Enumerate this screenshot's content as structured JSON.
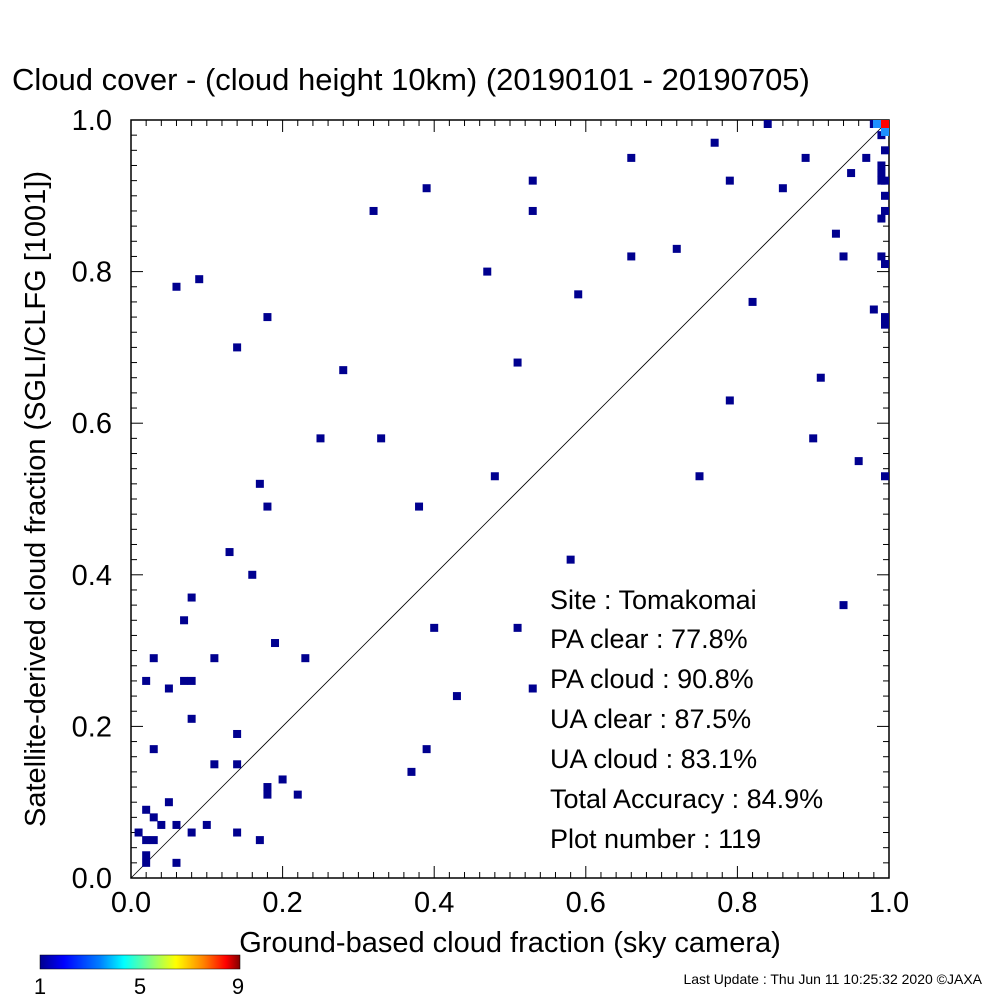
{
  "title": "Cloud cover - (cloud height 10km)  (20190101 - 20190705)",
  "chart_data": {
    "type": "scatter",
    "title": "Cloud cover - (cloud height 10km)  (20190101 - 20190705)",
    "xlabel": "Ground-based cloud fraction (sky camera)",
    "ylabel": "Satellite-derived cloud fraction (SGLI/CLFG [1001])",
    "xlim": [
      0,
      1
    ],
    "ylim": [
      0,
      1
    ],
    "xticks": [
      "0.0",
      "0.2",
      "0.4",
      "0.6",
      "0.8",
      "1.0"
    ],
    "yticks": [
      "0.0",
      "0.2",
      "0.4",
      "0.6",
      "0.8",
      "1.0"
    ],
    "diagonal_line": true,
    "grid": false,
    "points": [
      [
        0.01,
        0.06
      ],
      [
        0.02,
        0.02
      ],
      [
        0.02,
        0.03
      ],
      [
        0.02,
        0.05
      ],
      [
        0.02,
        0.09
      ],
      [
        0.02,
        0.26
      ],
      [
        0.03,
        0.05
      ],
      [
        0.03,
        0.08
      ],
      [
        0.03,
        0.29
      ],
      [
        0.03,
        0.17
      ],
      [
        0.04,
        0.07
      ],
      [
        0.05,
        0.1
      ],
      [
        0.05,
        0.25
      ],
      [
        0.06,
        0.07
      ],
      [
        0.06,
        0.02
      ],
      [
        0.06,
        0.78
      ],
      [
        0.07,
        0.26
      ],
      [
        0.07,
        0.34
      ],
      [
        0.08,
        0.37
      ],
      [
        0.08,
        0.26
      ],
      [
        0.08,
        0.21
      ],
      [
        0.08,
        0.06
      ],
      [
        0.09,
        0.79
      ],
      [
        0.1,
        0.07
      ],
      [
        0.11,
        0.29
      ],
      [
        0.11,
        0.15
      ],
      [
        0.13,
        0.43
      ],
      [
        0.14,
        0.7
      ],
      [
        0.14,
        0.19
      ],
      [
        0.14,
        0.15
      ],
      [
        0.14,
        0.06
      ],
      [
        0.16,
        0.4
      ],
      [
        0.17,
        0.52
      ],
      [
        0.17,
        0.05
      ],
      [
        0.18,
        0.74
      ],
      [
        0.18,
        0.49
      ],
      [
        0.18,
        0.11
      ],
      [
        0.18,
        0.12
      ],
      [
        0.19,
        0.31
      ],
      [
        0.2,
        0.13
      ],
      [
        0.22,
        0.11
      ],
      [
        0.23,
        0.29
      ],
      [
        0.25,
        0.58
      ],
      [
        0.28,
        0.67
      ],
      [
        0.32,
        0.88
      ],
      [
        0.33,
        0.58
      ],
      [
        0.37,
        0.14
      ],
      [
        0.38,
        0.49
      ],
      [
        0.39,
        0.91
      ],
      [
        0.39,
        0.17
      ],
      [
        0.4,
        0.33
      ],
      [
        0.43,
        0.24
      ],
      [
        0.47,
        0.8
      ],
      [
        0.48,
        0.53
      ],
      [
        0.51,
        0.68
      ],
      [
        0.51,
        0.33
      ],
      [
        0.53,
        0.92
      ],
      [
        0.53,
        0.88
      ],
      [
        0.53,
        0.25
      ],
      [
        0.58,
        0.42
      ],
      [
        0.59,
        0.77
      ],
      [
        0.66,
        0.95
      ],
      [
        0.66,
        0.82
      ],
      [
        0.72,
        0.83
      ],
      [
        0.75,
        0.53
      ],
      [
        0.77,
        0.97
      ],
      [
        0.79,
        0.92
      ],
      [
        0.79,
        0.63
      ],
      [
        0.82,
        0.76
      ],
      [
        0.84,
        1.0
      ],
      [
        0.86,
        0.91
      ],
      [
        0.89,
        0.95
      ],
      [
        0.9,
        0.58
      ],
      [
        0.91,
        0.66
      ],
      [
        0.93,
        0.85
      ],
      [
        0.94,
        0.82
      ],
      [
        0.94,
        0.36
      ],
      [
        0.95,
        0.93
      ],
      [
        0.96,
        0.55
      ],
      [
        0.97,
        0.95
      ],
      [
        0.98,
        0.75
      ],
      [
        0.98,
        1.0
      ],
      [
        0.99,
        0.98
      ],
      [
        0.99,
        0.94
      ],
      [
        0.99,
        0.93
      ],
      [
        0.99,
        0.92
      ],
      [
        0.99,
        0.87
      ],
      [
        0.99,
        0.82
      ],
      [
        1.0,
        0.96
      ],
      [
        1.0,
        0.92
      ],
      [
        1.0,
        0.9
      ],
      [
        1.0,
        0.88
      ],
      [
        1.0,
        0.81
      ],
      [
        1.0,
        0.74
      ],
      [
        1.0,
        0.73
      ],
      [
        1.0,
        0.53
      ]
    ],
    "colorbar": {
      "min_label": "1",
      "mid_label": "5",
      "max_label": "9",
      "colors": [
        "#00008f",
        "#0000ff",
        "#0080ff",
        "#00ffff",
        "#80ff80",
        "#ffff00",
        "#ff8000",
        "#ff0000",
        "#800000"
      ]
    }
  },
  "stats": {
    "site": "Site : Tomakomai",
    "pa_clear": "PA clear :  77.8%",
    "pa_cloud": "PA cloud :  90.8%",
    "ua_clear": "UA clear :  87.5%",
    "ua_cloud": "UA cloud :  83.1%",
    "total_accuracy": "Total Accuracy :  84.9%",
    "plot_number": "Plot number :       119"
  },
  "footer": "Last Update : Thu Jun 11 10:25:32 2020  ©JAXA",
  "colors": {
    "point": "#00008f",
    "point_mid": "#1e90ff",
    "point_high": "#ff0000"
  }
}
